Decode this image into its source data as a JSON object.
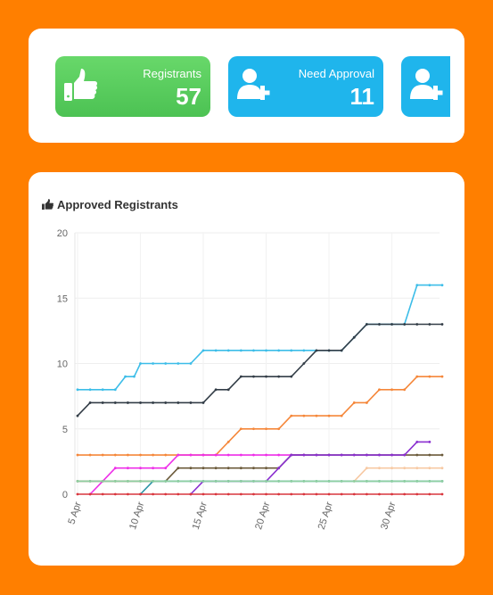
{
  "stats": {
    "cards": [
      {
        "label": "Registrants",
        "value": "57",
        "icon": "thumbs-up-icon",
        "color": "#5cce60"
      },
      {
        "label": "Need Approval",
        "value": "11",
        "icon": "user-plus-icon",
        "color": "#1fb5ec"
      },
      {
        "label": "",
        "value": "",
        "icon": "user-plus-icon",
        "color": "#1fb5ec"
      }
    ]
  },
  "chart": {
    "title": "Approved Registrants",
    "title_icon": "thumbs-up-icon"
  },
  "chart_data": {
    "type": "line",
    "title": "Approved Registrants",
    "xlabel": "",
    "ylabel": "",
    "ylim": [
      0,
      20
    ],
    "y_ticks": [
      0,
      5,
      10,
      15,
      20
    ],
    "x_ticks": [
      "5 Apr",
      "10 Apr",
      "15 Apr",
      "20 Apr",
      "25 Apr",
      "30 Apr"
    ],
    "x_range": [
      5,
      34
    ],
    "grid": true,
    "legend": "none",
    "series": [
      {
        "color": "#3cbde8",
        "points": [
          [
            5,
            8
          ],
          [
            6,
            8
          ],
          [
            7,
            8
          ],
          [
            8,
            8
          ],
          [
            8.8,
            9
          ],
          [
            9.5,
            9
          ],
          [
            10,
            10
          ],
          [
            11,
            10
          ],
          [
            12,
            10
          ],
          [
            13,
            10
          ],
          [
            14,
            10
          ],
          [
            15,
            11
          ],
          [
            16,
            11
          ],
          [
            17,
            11
          ],
          [
            18,
            11
          ],
          [
            19,
            11
          ],
          [
            20,
            11
          ],
          [
            21,
            11
          ],
          [
            22,
            11
          ],
          [
            23,
            11
          ],
          [
            24,
            11
          ],
          [
            25,
            11
          ],
          [
            26,
            11
          ],
          [
            27,
            12
          ],
          [
            28,
            13
          ],
          [
            29,
            13
          ],
          [
            30,
            13
          ],
          [
            31,
            13
          ],
          [
            32,
            16
          ],
          [
            33,
            16
          ],
          [
            34,
            16
          ]
        ]
      },
      {
        "color": "#333d47",
        "points": [
          [
            5,
            6
          ],
          [
            6,
            7
          ],
          [
            7,
            7
          ],
          [
            8,
            7
          ],
          [
            9,
            7
          ],
          [
            10,
            7
          ],
          [
            11,
            7
          ],
          [
            12,
            7
          ],
          [
            13,
            7
          ],
          [
            14,
            7
          ],
          [
            15,
            7
          ],
          [
            16,
            8
          ],
          [
            17,
            8
          ],
          [
            18,
            9
          ],
          [
            19,
            9
          ],
          [
            20,
            9
          ],
          [
            21,
            9
          ],
          [
            22,
            9
          ],
          [
            23,
            10
          ],
          [
            24,
            11
          ],
          [
            25,
            11
          ],
          [
            26,
            11
          ],
          [
            27,
            12
          ],
          [
            28,
            13
          ],
          [
            29,
            13
          ],
          [
            30,
            13
          ],
          [
            31,
            13
          ],
          [
            32,
            13
          ],
          [
            33,
            13
          ],
          [
            34,
            13
          ]
        ]
      },
      {
        "color": "#f5873a",
        "points": [
          [
            5,
            3
          ],
          [
            6,
            3
          ],
          [
            7,
            3
          ],
          [
            8,
            3
          ],
          [
            9,
            3
          ],
          [
            10,
            3
          ],
          [
            11,
            3
          ],
          [
            12,
            3
          ],
          [
            13,
            3
          ],
          [
            14,
            3
          ],
          [
            15,
            3
          ],
          [
            16,
            3
          ],
          [
            17,
            4
          ],
          [
            18,
            5
          ],
          [
            19,
            5
          ],
          [
            20,
            5
          ],
          [
            21,
            5
          ],
          [
            22,
            6
          ],
          [
            23,
            6
          ],
          [
            24,
            6
          ],
          [
            25,
            6
          ],
          [
            26,
            6
          ],
          [
            27,
            7
          ],
          [
            28,
            7
          ],
          [
            29,
            8
          ],
          [
            30,
            8
          ],
          [
            31,
            8
          ],
          [
            32,
            9
          ],
          [
            33,
            9
          ],
          [
            34,
            9
          ]
        ]
      },
      {
        "color": "#ee2fe8",
        "points": [
          [
            6,
            0
          ],
          [
            7,
            1
          ],
          [
            8,
            2
          ],
          [
            9,
            2
          ],
          [
            10,
            2
          ],
          [
            11,
            2
          ],
          [
            12,
            2
          ],
          [
            13,
            3
          ],
          [
            14,
            3
          ],
          [
            15,
            3
          ],
          [
            16,
            3
          ],
          [
            17,
            3
          ],
          [
            18,
            3
          ],
          [
            19,
            3
          ],
          [
            20,
            3
          ],
          [
            21,
            3
          ],
          [
            22,
            3
          ],
          [
            23,
            3
          ]
        ]
      },
      {
        "color": "#6b5a3a",
        "points": [
          [
            5,
            1
          ],
          [
            6,
            1
          ],
          [
            7,
            1
          ],
          [
            8,
            1
          ],
          [
            9,
            1
          ],
          [
            10,
            1
          ],
          [
            11,
            1
          ],
          [
            12,
            1
          ],
          [
            13,
            2
          ],
          [
            14,
            2
          ],
          [
            15,
            2
          ],
          [
            16,
            2
          ],
          [
            17,
            2
          ],
          [
            18,
            2
          ],
          [
            19,
            2
          ],
          [
            20,
            2
          ],
          [
            21,
            2
          ],
          [
            22,
            3
          ],
          [
            23,
            3
          ],
          [
            24,
            3
          ],
          [
            25,
            3
          ],
          [
            26,
            3
          ],
          [
            27,
            3
          ],
          [
            28,
            3
          ],
          [
            29,
            3
          ],
          [
            30,
            3
          ],
          [
            31,
            3
          ],
          [
            32,
            3
          ],
          [
            33,
            3
          ],
          [
            34,
            3
          ]
        ]
      },
      {
        "color": "#8a2fd0",
        "points": [
          [
            14,
            0
          ],
          [
            15,
            1
          ],
          [
            16,
            1
          ],
          [
            17,
            1
          ],
          [
            18,
            1
          ],
          [
            19,
            1
          ],
          [
            20,
            1
          ],
          [
            21,
            2
          ],
          [
            22,
            3
          ],
          [
            23,
            3
          ],
          [
            24,
            3
          ],
          [
            25,
            3
          ],
          [
            26,
            3
          ],
          [
            27,
            3
          ],
          [
            28,
            3
          ],
          [
            29,
            3
          ],
          [
            30,
            3
          ],
          [
            31,
            3
          ],
          [
            32,
            4
          ],
          [
            33,
            4
          ]
        ]
      },
      {
        "color": "#2a93a5",
        "points": [
          [
            10,
            0
          ],
          [
            11,
            1
          ],
          [
            12,
            1
          ],
          [
            13,
            1
          ],
          [
            14,
            1
          ],
          [
            15,
            1
          ],
          [
            16,
            1
          ],
          [
            17,
            1
          ],
          [
            18,
            1
          ],
          [
            19,
            1
          ],
          [
            20,
            1
          ],
          [
            21,
            1
          ],
          [
            22,
            1
          ],
          [
            23,
            1
          ],
          [
            24,
            1
          ],
          [
            25,
            1
          ],
          [
            26,
            1
          ],
          [
            27,
            1
          ],
          [
            28,
            1
          ],
          [
            29,
            1
          ],
          [
            30,
            1
          ],
          [
            31,
            1
          ],
          [
            32,
            1
          ],
          [
            33,
            1
          ],
          [
            34,
            1
          ]
        ]
      },
      {
        "color": "#f7c9a3",
        "points": [
          [
            27,
            1
          ],
          [
            28,
            2
          ],
          [
            29,
            2
          ],
          [
            30,
            2
          ],
          [
            31,
            2
          ],
          [
            32,
            2
          ],
          [
            33,
            2
          ],
          [
            34,
            2
          ]
        ]
      },
      {
        "color": "#8fd0a0",
        "points": [
          [
            5,
            1
          ],
          [
            6,
            1
          ],
          [
            7,
            1
          ],
          [
            8,
            1
          ],
          [
            9,
            1
          ],
          [
            10,
            1
          ],
          [
            11,
            1
          ],
          [
            12,
            1
          ],
          [
            13,
            1
          ],
          [
            14,
            1
          ],
          [
            15,
            1
          ],
          [
            16,
            1
          ],
          [
            17,
            1
          ],
          [
            18,
            1
          ],
          [
            19,
            1
          ],
          [
            20,
            1
          ],
          [
            21,
            1
          ],
          [
            22,
            1
          ],
          [
            23,
            1
          ],
          [
            24,
            1
          ],
          [
            25,
            1
          ],
          [
            26,
            1
          ],
          [
            27,
            1
          ],
          [
            28,
            1
          ],
          [
            29,
            1
          ],
          [
            30,
            1
          ],
          [
            31,
            1
          ],
          [
            32,
            1
          ],
          [
            33,
            1
          ],
          [
            34,
            1
          ]
        ]
      },
      {
        "color": "#d9363e",
        "points": [
          [
            5,
            0
          ],
          [
            6,
            0
          ],
          [
            7,
            0
          ],
          [
            8,
            0
          ],
          [
            9,
            0
          ],
          [
            10,
            0
          ],
          [
            11,
            0
          ],
          [
            12,
            0
          ],
          [
            13,
            0
          ],
          [
            14,
            0
          ],
          [
            15,
            0
          ],
          [
            16,
            0
          ],
          [
            17,
            0
          ],
          [
            18,
            0
          ],
          [
            19,
            0
          ],
          [
            20,
            0
          ],
          [
            21,
            0
          ],
          [
            22,
            0
          ],
          [
            23,
            0
          ],
          [
            24,
            0
          ],
          [
            25,
            0
          ],
          [
            26,
            0
          ],
          [
            27,
            0
          ],
          [
            28,
            0
          ],
          [
            29,
            0
          ],
          [
            30,
            0
          ],
          [
            31,
            0
          ],
          [
            32,
            0
          ],
          [
            33,
            0
          ],
          [
            34,
            0
          ]
        ]
      }
    ]
  }
}
